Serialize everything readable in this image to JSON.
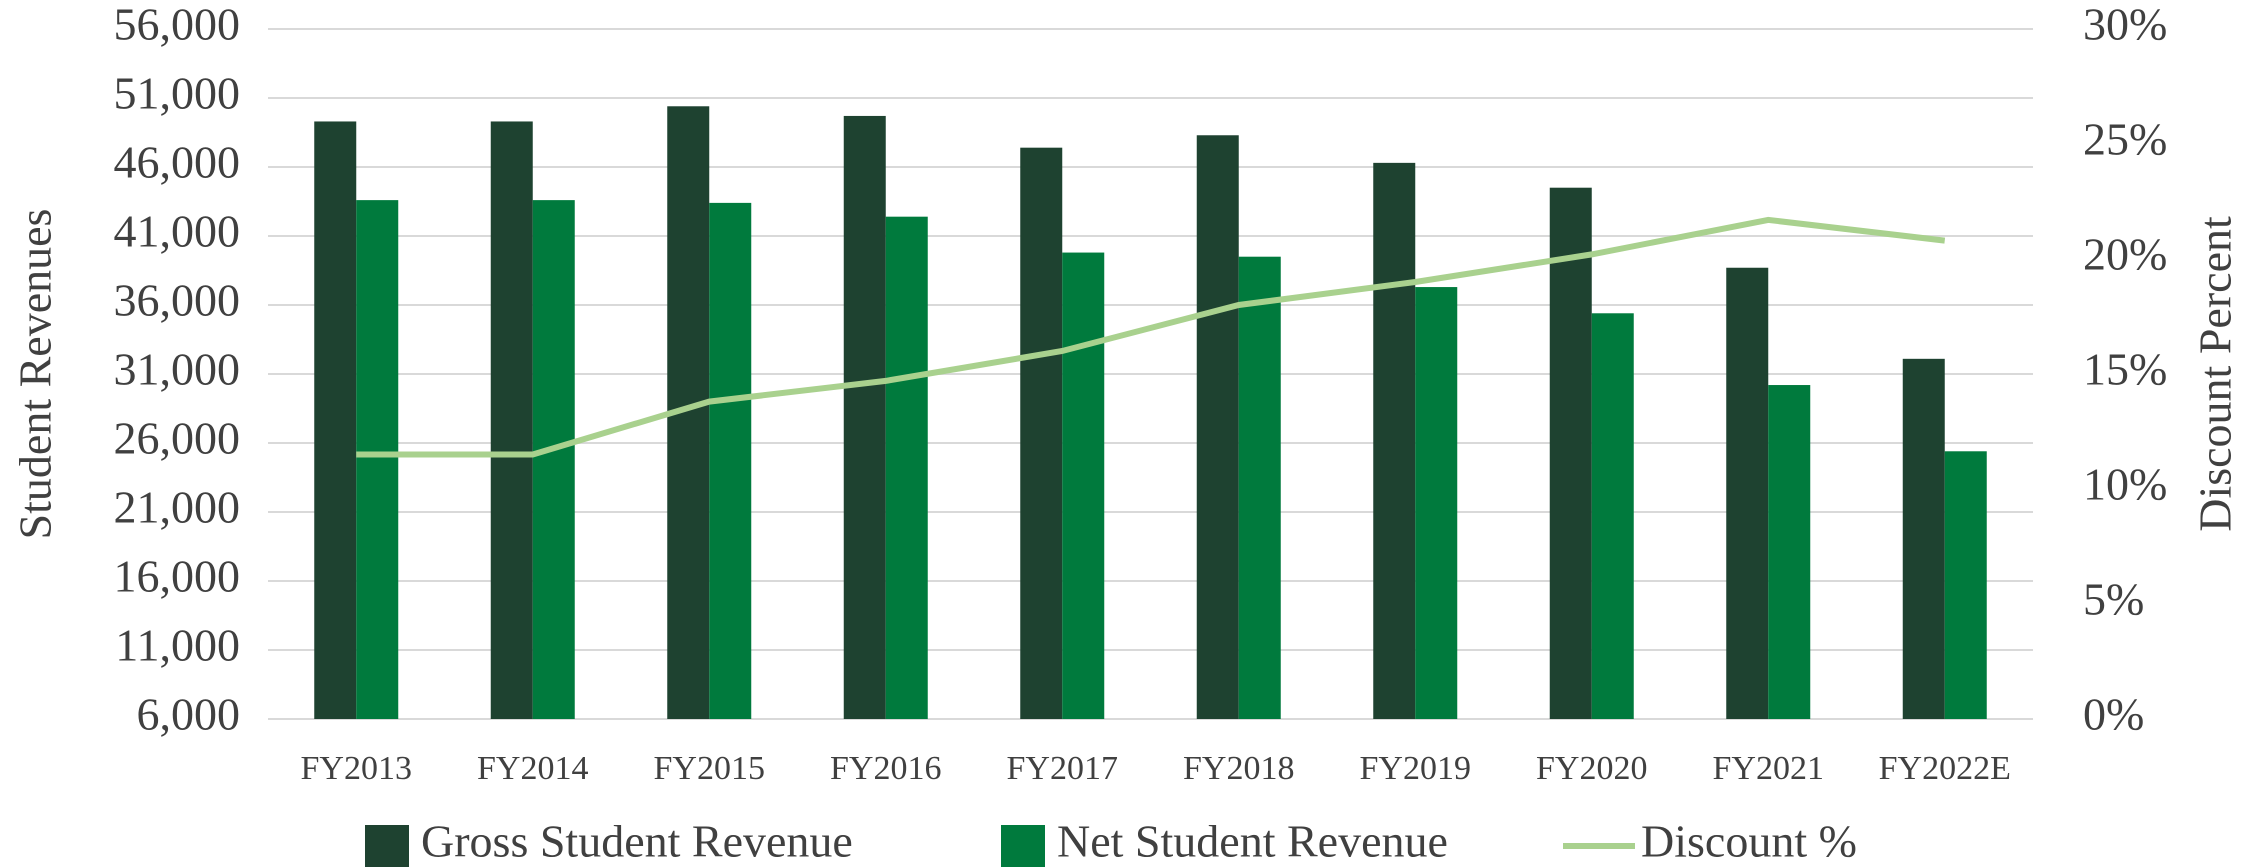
{
  "chart_data": {
    "type": "bar",
    "categories": [
      "FY2013",
      "FY2014",
      "FY2015",
      "FY2016",
      "FY2017",
      "FY2018",
      "FY2019",
      "FY2020",
      "FY2021",
      "FY2022E"
    ],
    "series": [
      {
        "name": "Gross Student Revenue",
        "color": "#1e4230",
        "type": "bar",
        "values": [
          49300,
          49300,
          50400,
          49700,
          47400,
          48300,
          46300,
          44500,
          38700,
          32100
        ]
      },
      {
        "name": "Net Student Revenue",
        "color": "#007a3d",
        "type": "bar",
        "values": [
          43600,
          43600,
          43400,
          42400,
          39800,
          39500,
          37300,
          35400,
          30200,
          25400
        ]
      },
      {
        "name": "Discount %",
        "color": "#a9d18e",
        "type": "line",
        "axis": "y2",
        "values": [
          11.5,
          11.5,
          13.8,
          14.7,
          16.0,
          18.0,
          19.0,
          20.2,
          21.7,
          20.8
        ]
      }
    ],
    "ylabel": "Student Revenues",
    "y2label": "Discount Percent",
    "ylim": [
      6000,
      56000
    ],
    "yticks": [
      {
        "value": 6000,
        "label": "6,000"
      },
      {
        "value": 11000,
        "label": "11,000"
      },
      {
        "value": 16000,
        "label": "16,000"
      },
      {
        "value": 21000,
        "label": "21,000"
      },
      {
        "value": 26000,
        "label": "26,000"
      },
      {
        "value": 31000,
        "label": "31,000"
      },
      {
        "value": 36000,
        "label": "36,000"
      },
      {
        "value": 41000,
        "label": "41,000"
      },
      {
        "value": 46000,
        "label": "46,000"
      },
      {
        "value": 51000,
        "label": "51,000"
      },
      {
        "value": 56000,
        "label": "56,000"
      }
    ],
    "y2lim": [
      0,
      30
    ],
    "y2ticks": [
      {
        "value": 0,
        "label": "0%"
      },
      {
        "value": 5,
        "label": "5%"
      },
      {
        "value": 10,
        "label": "10%"
      },
      {
        "value": 15,
        "label": "15%"
      },
      {
        "value": 20,
        "label": "20%"
      },
      {
        "value": 25,
        "label": "25%"
      },
      {
        "value": 30,
        "label": "30%"
      }
    ],
    "grid": true,
    "legend": "bottom"
  }
}
